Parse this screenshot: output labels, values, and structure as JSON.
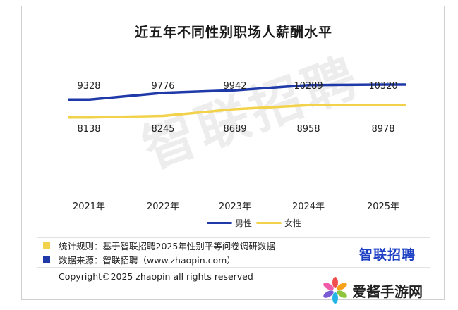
{
  "chart_data": {
    "type": "line",
    "title": "近五年不同性别职场人薪酬水平",
    "categories": [
      "2021年",
      "2022年",
      "2023年",
      "2024年",
      "2025年"
    ],
    "series": [
      {
        "name": "男性",
        "color": "#1f3aa8",
        "values": [
          9328,
          9776,
          9942,
          10289,
          10320
        ]
      },
      {
        "name": "女性",
        "color": "#f2d24b",
        "values": [
          8138,
          8245,
          8689,
          8958,
          8978
        ]
      }
    ],
    "ylim": [
      7800,
      10600
    ],
    "grid": false,
    "legend": "bottom"
  },
  "watermark": "智联招聘",
  "notes": [
    {
      "text": "统计规则：基于智联招聘2025年性别平等问卷调研数据",
      "color": "#f2d24b"
    },
    {
      "text": "数据来源：智联招聘（www.zhaopin.com）",
      "color": "#1f3aa8"
    }
  ],
  "brand": "智联招聘",
  "copyright": "Copyright©2025 zhaopin all rights reserved",
  "site": {
    "name": "爱酱手游网",
    "icon": "flower-icon"
  }
}
